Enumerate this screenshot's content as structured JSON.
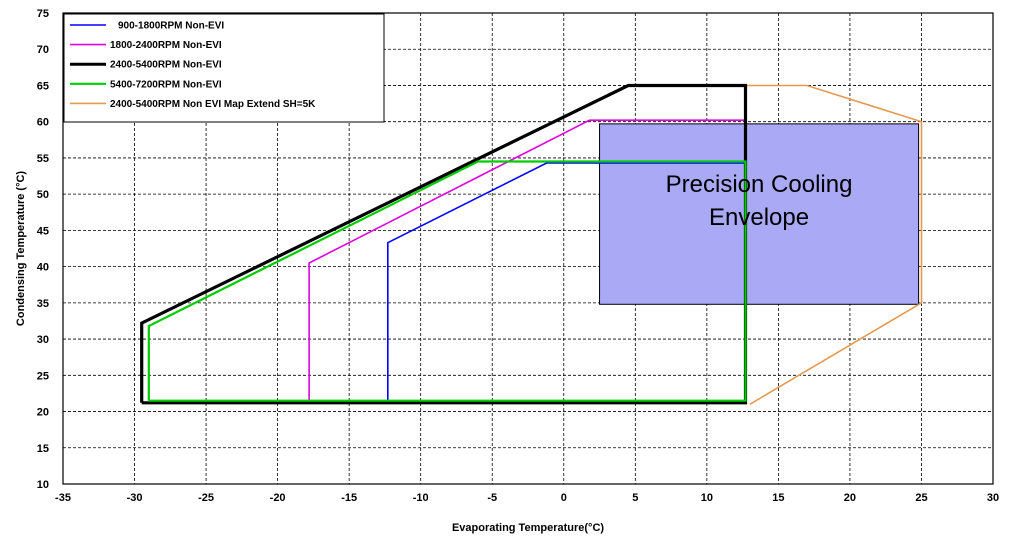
{
  "chart_data": {
    "type": "line",
    "title": "",
    "xlabel": "Evaporating  Temperature(°C)",
    "ylabel": "Condensing Temperature (°C)",
    "xlim": [
      -35,
      30
    ],
    "ylim": [
      10,
      75
    ],
    "xticks": [
      -35,
      -30,
      -25,
      -20,
      -15,
      -10,
      -5,
      0,
      5,
      10,
      15,
      20,
      25,
      30
    ],
    "yticks": [
      10,
      15,
      20,
      25,
      30,
      35,
      40,
      45,
      50,
      55,
      60,
      65,
      70,
      75
    ],
    "grid": true,
    "legend_position": "top-left",
    "series": [
      {
        "name": "900-1800RPM Non-EVI",
        "color": "#0000ff",
        "points": [
          [
            -12.3,
            21.5
          ],
          [
            -12.3,
            43.3
          ],
          [
            -1.2,
            54.3
          ],
          [
            12.7,
            54.3
          ],
          [
            12.7,
            21.5
          ]
        ]
      },
      {
        "name": "1800-2400RPM Non-EVI",
        "color": "#e000e0",
        "points": [
          [
            -17.8,
            21.5
          ],
          [
            -17.8,
            40.5
          ],
          [
            1.8,
            60.2
          ],
          [
            12.7,
            60.2
          ],
          [
            12.7,
            21.5
          ]
        ]
      },
      {
        "name": "2400-5400RPM Non-EVI",
        "color": "#000000",
        "points": [
          [
            -29.5,
            21.2
          ],
          [
            -29.5,
            32.2
          ],
          [
            4.5,
            65.0
          ],
          [
            12.7,
            65.0
          ],
          [
            12.7,
            21.2
          ],
          [
            -29.5,
            21.2
          ]
        ]
      },
      {
        "name": "5400-7200RPM Non-EVI",
        "color": "#00cc00",
        "points": [
          [
            -29.0,
            21.5
          ],
          [
            -29.0,
            31.8
          ],
          [
            -6.0,
            54.5
          ],
          [
            12.7,
            54.5
          ],
          [
            12.7,
            21.5
          ],
          [
            -29.0,
            21.5
          ]
        ]
      },
      {
        "name": "2400-5400RPM Non EVI Map Extend SH=5K",
        "color": "#e39a50",
        "points": [
          [
            12.7,
            65.0
          ],
          [
            17.0,
            65.0
          ],
          [
            25.0,
            60.0
          ],
          [
            25.0,
            35.0
          ],
          [
            13.0,
            21.0
          ]
        ]
      }
    ],
    "regions": [
      {
        "label_line1": "Precision Cooling",
        "label_line2": "Envelope",
        "fill": "#a9a9f5",
        "x": [
          2.5,
          24.8
        ],
        "y": [
          34.8,
          59.7
        ]
      }
    ]
  }
}
